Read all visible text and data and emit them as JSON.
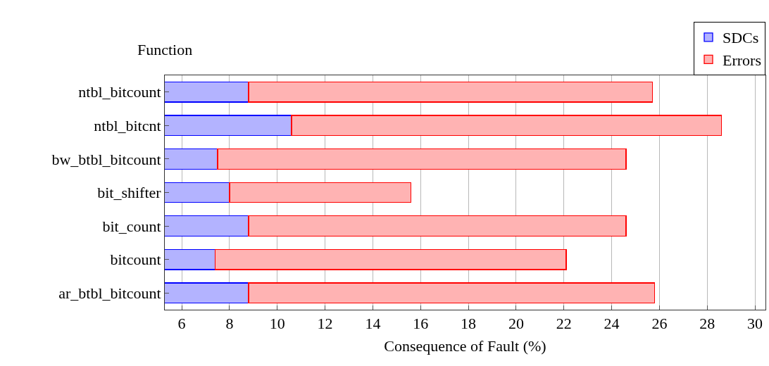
{
  "chart_data": {
    "type": "bar",
    "orientation": "horizontal",
    "stacked": true,
    "ylabel": "Function",
    "xlabel": "Consequence of Fault (%)",
    "categories": [
      "ntbl_bitcount",
      "ntbl_bitcnt",
      "bw_btbl_bitcount",
      "bit_shifter",
      "bit_count",
      "bitcount",
      "ar_btbl_bitcount"
    ],
    "series": [
      {
        "name": "SDCs",
        "color": "#b3b3ff",
        "values": [
          8.8,
          10.6,
          7.5,
          8.0,
          8.8,
          7.4,
          8.8
        ]
      },
      {
        "name": "Errors",
        "color": "#ffb3b3",
        "values": [
          16.9,
          18.0,
          17.1,
          7.6,
          15.8,
          14.7,
          17.0
        ]
      }
    ],
    "xlim": [
      5.29,
      30.44
    ],
    "xticks": [
      6,
      8,
      10,
      12,
      14,
      16,
      18,
      20,
      22,
      24,
      26,
      28,
      30
    ],
    "grid": "x",
    "legend": "top right"
  }
}
